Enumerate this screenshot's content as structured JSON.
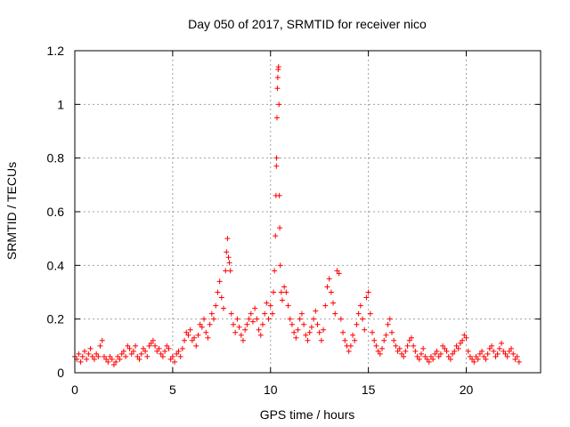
{
  "chart_data": {
    "type": "scatter",
    "title": "Day 050 of 2017, SRMTID for receiver nico",
    "xlabel": "GPS time / hours",
    "ylabel": "SRMTID / TECUs",
    "xlim": [
      0,
      23.8
    ],
    "ylim": [
      0,
      1.2
    ],
    "xticks": [
      0,
      5,
      10,
      15,
      20
    ],
    "yticks": [
      0,
      0.2,
      0.4,
      0.6,
      0.8,
      1,
      1.2
    ],
    "xtick_labels": [
      "0",
      "5",
      "10",
      "15",
      "20"
    ],
    "ytick_labels": [
      "0",
      "0.2",
      "0.4",
      "0.6",
      "0.8",
      "1",
      "1.2"
    ],
    "grid": true,
    "marker": "+",
    "color": "#ff0000",
    "series": [
      {
        "name": "nico",
        "points": [
          [
            0.0,
            0.06
          ],
          [
            0.1,
            0.05
          ],
          [
            0.2,
            0.07
          ],
          [
            0.3,
            0.04
          ],
          [
            0.4,
            0.06
          ],
          [
            0.5,
            0.08
          ],
          [
            0.6,
            0.05
          ],
          [
            0.7,
            0.07
          ],
          [
            0.8,
            0.09
          ],
          [
            0.9,
            0.06
          ],
          [
            1.0,
            0.05
          ],
          [
            1.1,
            0.07
          ],
          [
            1.2,
            0.06
          ],
          [
            1.3,
            0.1
          ],
          [
            1.4,
            0.12
          ],
          [
            1.5,
            0.06
          ],
          [
            1.6,
            0.05
          ],
          [
            1.7,
            0.04
          ],
          [
            1.8,
            0.06
          ],
          [
            1.9,
            0.05
          ],
          [
            2.0,
            0.03
          ],
          [
            2.1,
            0.04
          ],
          [
            2.2,
            0.06
          ],
          [
            2.3,
            0.05
          ],
          [
            2.4,
            0.07
          ],
          [
            2.5,
            0.08
          ],
          [
            2.6,
            0.06
          ],
          [
            2.7,
            0.1
          ],
          [
            2.8,
            0.09
          ],
          [
            2.9,
            0.07
          ],
          [
            3.0,
            0.08
          ],
          [
            3.1,
            0.1
          ],
          [
            3.2,
            0.06
          ],
          [
            3.3,
            0.05
          ],
          [
            3.4,
            0.07
          ],
          [
            3.5,
            0.09
          ],
          [
            3.6,
            0.08
          ],
          [
            3.7,
            0.06
          ],
          [
            3.8,
            0.1
          ],
          [
            3.9,
            0.11
          ],
          [
            4.0,
            0.12
          ],
          [
            4.1,
            0.1
          ],
          [
            4.2,
            0.08
          ],
          [
            4.3,
            0.09
          ],
          [
            4.4,
            0.07
          ],
          [
            4.5,
            0.06
          ],
          [
            4.6,
            0.08
          ],
          [
            4.7,
            0.1
          ],
          [
            4.8,
            0.09
          ],
          [
            4.9,
            0.05
          ],
          [
            5.0,
            0.06
          ],
          [
            5.1,
            0.04
          ],
          [
            5.2,
            0.07
          ],
          [
            5.3,
            0.08
          ],
          [
            5.4,
            0.06
          ],
          [
            5.5,
            0.09
          ],
          [
            5.6,
            0.12
          ],
          [
            5.7,
            0.15
          ],
          [
            5.8,
            0.14
          ],
          [
            5.9,
            0.16
          ],
          [
            6.0,
            0.12
          ],
          [
            6.1,
            0.13
          ],
          [
            6.2,
            0.1
          ],
          [
            6.3,
            0.14
          ],
          [
            6.4,
            0.18
          ],
          [
            6.5,
            0.17
          ],
          [
            6.6,
            0.2
          ],
          [
            6.7,
            0.15
          ],
          [
            6.8,
            0.13
          ],
          [
            6.9,
            0.18
          ],
          [
            7.0,
            0.22
          ],
          [
            7.1,
            0.2
          ],
          [
            7.2,
            0.25
          ],
          [
            7.3,
            0.3
          ],
          [
            7.4,
            0.34
          ],
          [
            7.5,
            0.28
          ],
          [
            7.6,
            0.24
          ],
          [
            7.7,
            0.38
          ],
          [
            7.75,
            0.45
          ],
          [
            7.8,
            0.5
          ],
          [
            7.85,
            0.43
          ],
          [
            7.9,
            0.41
          ],
          [
            7.95,
            0.38
          ],
          [
            8.0,
            0.22
          ],
          [
            8.1,
            0.18
          ],
          [
            8.2,
            0.15
          ],
          [
            8.3,
            0.2
          ],
          [
            8.4,
            0.17
          ],
          [
            8.5,
            0.14
          ],
          [
            8.6,
            0.12
          ],
          [
            8.7,
            0.16
          ],
          [
            8.8,
            0.18
          ],
          [
            8.9,
            0.2
          ],
          [
            9.0,
            0.22
          ],
          [
            9.1,
            0.19
          ],
          [
            9.2,
            0.24
          ],
          [
            9.3,
            0.2
          ],
          [
            9.4,
            0.16
          ],
          [
            9.5,
            0.14
          ],
          [
            9.6,
            0.18
          ],
          [
            9.7,
            0.22
          ],
          [
            9.8,
            0.26
          ],
          [
            9.9,
            0.2
          ],
          [
            10.0,
            0.25
          ],
          [
            10.1,
            0.22
          ],
          [
            10.15,
            0.3
          ],
          [
            10.2,
            0.38
          ],
          [
            10.25,
            0.51
          ],
          [
            10.28,
            0.66
          ],
          [
            10.3,
            0.77
          ],
          [
            10.31,
            0.8
          ],
          [
            10.33,
            0.95
          ],
          [
            10.35,
            1.06
          ],
          [
            10.37,
            1.1
          ],
          [
            10.39,
            1.13
          ],
          [
            10.41,
            1.14
          ],
          [
            10.43,
            1.0
          ],
          [
            10.45,
            0.66
          ],
          [
            10.47,
            0.54
          ],
          [
            10.5,
            0.4
          ],
          [
            10.55,
            0.3
          ],
          [
            10.6,
            0.27
          ],
          [
            10.7,
            0.32
          ],
          [
            10.8,
            0.3
          ],
          [
            10.9,
            0.25
          ],
          [
            11.0,
            0.2
          ],
          [
            11.1,
            0.18
          ],
          [
            11.2,
            0.15
          ],
          [
            11.3,
            0.13
          ],
          [
            11.4,
            0.16
          ],
          [
            11.5,
            0.2
          ],
          [
            11.6,
            0.22
          ],
          [
            11.7,
            0.18
          ],
          [
            11.8,
            0.14
          ],
          [
            11.9,
            0.12
          ],
          [
            12.0,
            0.15
          ],
          [
            12.1,
            0.17
          ],
          [
            12.2,
            0.2
          ],
          [
            12.3,
            0.23
          ],
          [
            12.4,
            0.18
          ],
          [
            12.5,
            0.15
          ],
          [
            12.6,
            0.12
          ],
          [
            12.7,
            0.16
          ],
          [
            12.8,
            0.25
          ],
          [
            12.9,
            0.32
          ],
          [
            13.0,
            0.35
          ],
          [
            13.1,
            0.3
          ],
          [
            13.2,
            0.26
          ],
          [
            13.3,
            0.22
          ],
          [
            13.4,
            0.38
          ],
          [
            13.5,
            0.37
          ],
          [
            13.6,
            0.2
          ],
          [
            13.7,
            0.15
          ],
          [
            13.8,
            0.12
          ],
          [
            13.9,
            0.1
          ],
          [
            14.0,
            0.08
          ],
          [
            14.1,
            0.1
          ],
          [
            14.2,
            0.14
          ],
          [
            14.3,
            0.12
          ],
          [
            14.4,
            0.18
          ],
          [
            14.5,
            0.22
          ],
          [
            14.6,
            0.25
          ],
          [
            14.7,
            0.2
          ],
          [
            14.8,
            0.16
          ],
          [
            14.9,
            0.28
          ],
          [
            15.0,
            0.3
          ],
          [
            15.1,
            0.22
          ],
          [
            15.2,
            0.15
          ],
          [
            15.3,
            0.12
          ],
          [
            15.4,
            0.1
          ],
          [
            15.5,
            0.08
          ],
          [
            15.6,
            0.07
          ],
          [
            15.7,
            0.09
          ],
          [
            15.8,
            0.12
          ],
          [
            15.9,
            0.14
          ],
          [
            16.0,
            0.18
          ],
          [
            16.1,
            0.2
          ],
          [
            16.2,
            0.15
          ],
          [
            16.3,
            0.12
          ],
          [
            16.4,
            0.1
          ],
          [
            16.5,
            0.08
          ],
          [
            16.6,
            0.09
          ],
          [
            16.7,
            0.07
          ],
          [
            16.8,
            0.06
          ],
          [
            16.9,
            0.08
          ],
          [
            17.0,
            0.1
          ],
          [
            17.1,
            0.12
          ],
          [
            17.2,
            0.13
          ],
          [
            17.3,
            0.1
          ],
          [
            17.4,
            0.08
          ],
          [
            17.5,
            0.06
          ],
          [
            17.6,
            0.05
          ],
          [
            17.7,
            0.07
          ],
          [
            17.8,
            0.09
          ],
          [
            17.9,
            0.06
          ],
          [
            18.0,
            0.05
          ],
          [
            18.1,
            0.04
          ],
          [
            18.2,
            0.06
          ],
          [
            18.3,
            0.05
          ],
          [
            18.4,
            0.07
          ],
          [
            18.5,
            0.08
          ],
          [
            18.6,
            0.06
          ],
          [
            18.7,
            0.07
          ],
          [
            18.8,
            0.1
          ],
          [
            18.9,
            0.09
          ],
          [
            19.0,
            0.08
          ],
          [
            19.1,
            0.06
          ],
          [
            19.2,
            0.05
          ],
          [
            19.3,
            0.07
          ],
          [
            19.4,
            0.08
          ],
          [
            19.5,
            0.1
          ],
          [
            19.6,
            0.09
          ],
          [
            19.7,
            0.11
          ],
          [
            19.8,
            0.12
          ],
          [
            19.9,
            0.14
          ],
          [
            20.0,
            0.13
          ],
          [
            20.1,
            0.08
          ],
          [
            20.2,
            0.06
          ],
          [
            20.3,
            0.05
          ],
          [
            20.4,
            0.04
          ],
          [
            20.5,
            0.06
          ],
          [
            20.6,
            0.05
          ],
          [
            20.7,
            0.07
          ],
          [
            20.8,
            0.08
          ],
          [
            20.9,
            0.06
          ],
          [
            21.0,
            0.05
          ],
          [
            21.1,
            0.07
          ],
          [
            21.2,
            0.09
          ],
          [
            21.3,
            0.1
          ],
          [
            21.4,
            0.08
          ],
          [
            21.5,
            0.06
          ],
          [
            21.6,
            0.07
          ],
          [
            21.7,
            0.09
          ],
          [
            21.8,
            0.11
          ],
          [
            21.9,
            0.08
          ],
          [
            22.0,
            0.07
          ],
          [
            22.1,
            0.06
          ],
          [
            22.2,
            0.08
          ],
          [
            22.3,
            0.09
          ],
          [
            22.4,
            0.07
          ],
          [
            22.5,
            0.05
          ],
          [
            22.6,
            0.06
          ],
          [
            22.7,
            0.04
          ]
        ]
      }
    ]
  }
}
